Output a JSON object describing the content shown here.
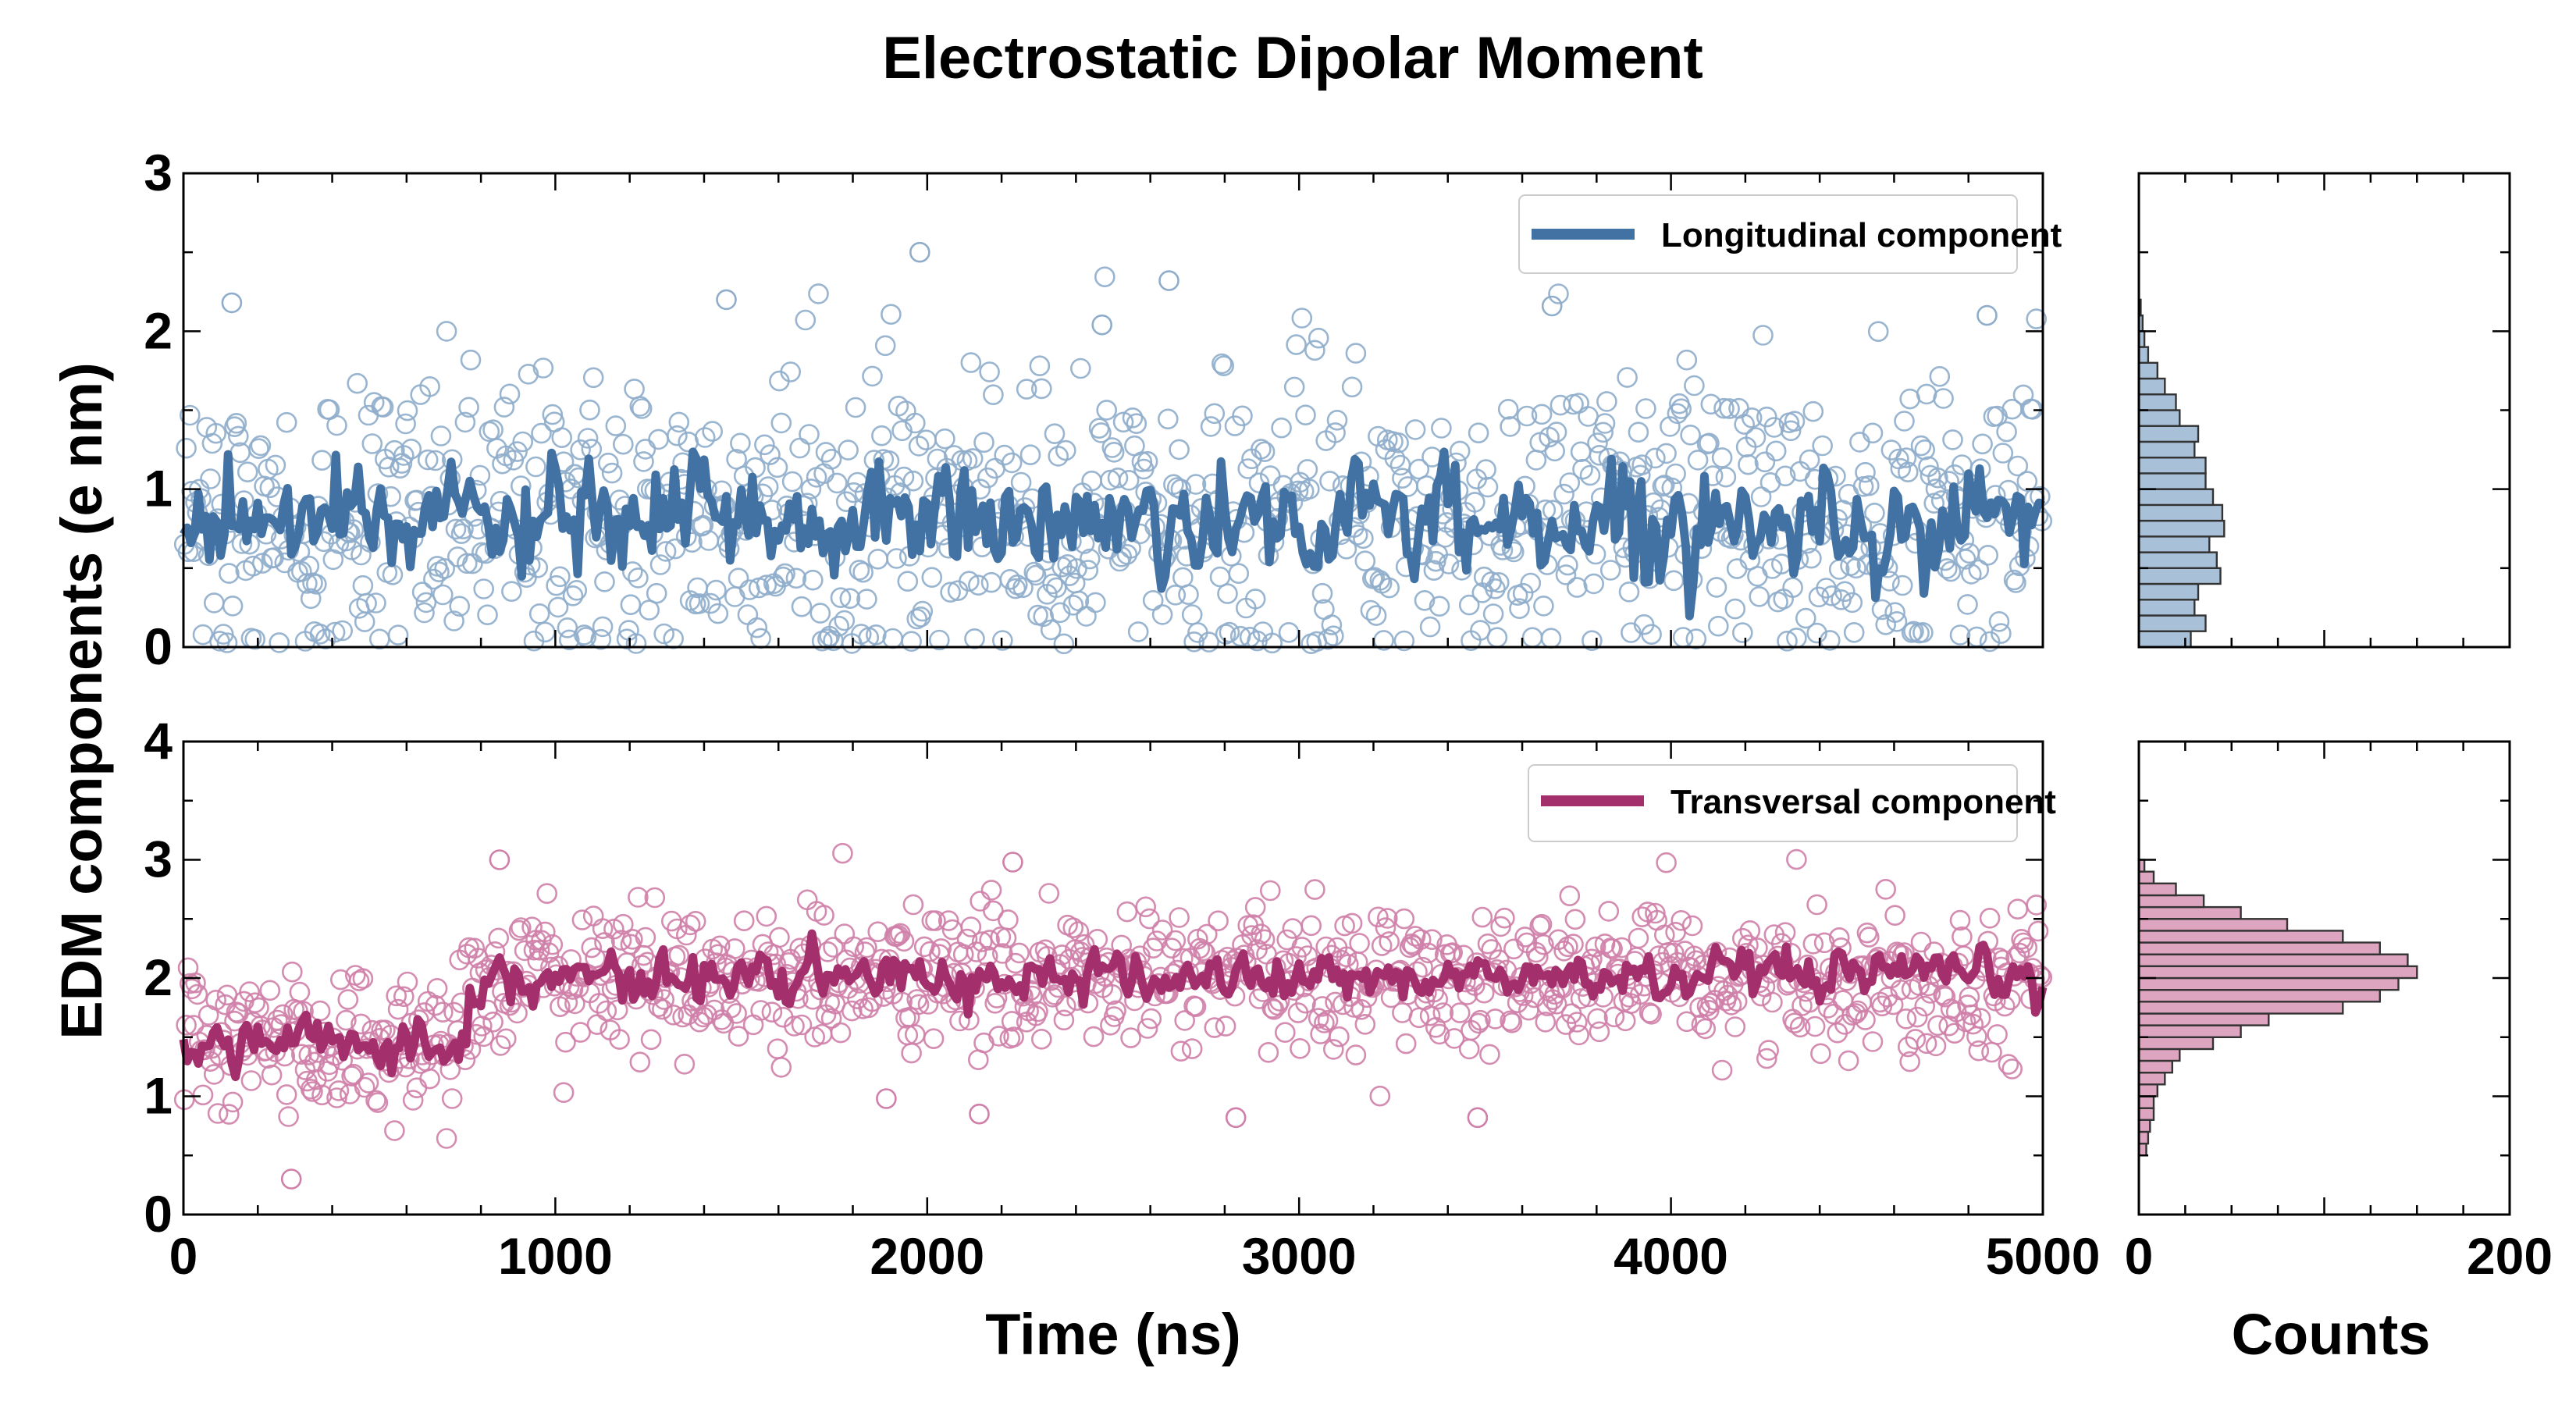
{
  "chart_data": {
    "type": "scatter",
    "title": "Electrostatic Dipolar Moment",
    "ylabel": "EDM components (e nm)",
    "xlabel": "Time (ns)",
    "hist_xlabel": "Counts",
    "x_range": [
      0,
      5000
    ],
    "x_ticks": [
      0,
      1000,
      2000,
      3000,
      4000,
      5000
    ],
    "hist_x_range": [
      0,
      200
    ],
    "hist_x_ticks": [
      0,
      200
    ],
    "panels": [
      {
        "name": "longitudinal",
        "legend": "Longitudinal component",
        "color": "#4272a3",
        "point_color": "#8fadcb",
        "hist_fill": "#a9c0d9",
        "ylim": [
          0,
          3
        ],
        "y_ticks": [
          0,
          1,
          2,
          3
        ],
        "scatter_mean": 0.8,
        "scatter_sd": 0.48,
        "line_mean": 0.8,
        "line_sd": 0.17,
        "outliers": [
          [
            1980,
            2.5
          ],
          [
            2650,
            2.32
          ],
          [
            130,
            2.18
          ],
          [
            1460,
            2.2
          ],
          [
            3680,
            2.16
          ],
          [
            4850,
            2.1
          ],
          [
            2470,
            2.04
          ]
        ],
        "hist_bins": [
          {
            "y": 0.05,
            "count": 28
          },
          {
            "y": 0.15,
            "count": 36
          },
          {
            "y": 0.25,
            "count": 30
          },
          {
            "y": 0.35,
            "count": 32
          },
          {
            "y": 0.45,
            "count": 44
          },
          {
            "y": 0.55,
            "count": 42
          },
          {
            "y": 0.65,
            "count": 38
          },
          {
            "y": 0.75,
            "count": 46
          },
          {
            "y": 0.85,
            "count": 45
          },
          {
            "y": 0.95,
            "count": 40
          },
          {
            "y": 1.05,
            "count": 36
          },
          {
            "y": 1.15,
            "count": 36
          },
          {
            "y": 1.25,
            "count": 30
          },
          {
            "y": 1.35,
            "count": 32
          },
          {
            "y": 1.45,
            "count": 22
          },
          {
            "y": 1.55,
            "count": 20
          },
          {
            "y": 1.65,
            "count": 14
          },
          {
            "y": 1.75,
            "count": 10
          },
          {
            "y": 1.85,
            "count": 5
          },
          {
            "y": 1.95,
            "count": 3
          },
          {
            "y": 2.05,
            "count": 2
          },
          {
            "y": 2.15,
            "count": 1
          }
        ]
      },
      {
        "name": "transversal",
        "legend": "Transversal component",
        "color": "#a3306c",
        "point_color": "#cf7fa8",
        "hist_fill": "#dea5c0",
        "ylim": [
          0,
          4
        ],
        "y_ticks": [
          0,
          1,
          2,
          3,
          4
        ],
        "segments": [
          {
            "x_start": 0,
            "x_end": 760,
            "mean": 1.45,
            "scatter_sd": 0.33,
            "line_sd": 0.1
          },
          {
            "x_start": 760,
            "x_end": 5000,
            "mean": 2.0,
            "scatter_sd": 0.3,
            "line_sd": 0.1
          }
        ],
        "outliers": [
          [
            850,
            3.0
          ],
          [
            290,
            0.3
          ],
          [
            2230,
            2.98
          ],
          [
            1890,
            0.98
          ],
          [
            2830,
            0.82
          ],
          [
            3480,
            0.82
          ],
          [
            2140,
            0.85
          ]
        ],
        "hist_bins": [
          {
            "y": 0.55,
            "count": 4
          },
          {
            "y": 0.65,
            "count": 5
          },
          {
            "y": 0.75,
            "count": 6
          },
          {
            "y": 0.85,
            "count": 8
          },
          {
            "y": 0.95,
            "count": 8
          },
          {
            "y": 1.05,
            "count": 10
          },
          {
            "y": 1.15,
            "count": 14
          },
          {
            "y": 1.25,
            "count": 18
          },
          {
            "y": 1.35,
            "count": 22
          },
          {
            "y": 1.45,
            "count": 40
          },
          {
            "y": 1.55,
            "count": 55
          },
          {
            "y": 1.65,
            "count": 70
          },
          {
            "y": 1.75,
            "count": 110
          },
          {
            "y": 1.85,
            "count": 130
          },
          {
            "y": 1.95,
            "count": 140
          },
          {
            "y": 2.05,
            "count": 150
          },
          {
            "y": 2.15,
            "count": 145
          },
          {
            "y": 2.25,
            "count": 130
          },
          {
            "y": 2.35,
            "count": 110
          },
          {
            "y": 2.45,
            "count": 80
          },
          {
            "y": 2.55,
            "count": 55
          },
          {
            "y": 2.65,
            "count": 35
          },
          {
            "y": 2.75,
            "count": 20
          },
          {
            "y": 2.85,
            "count": 8
          },
          {
            "y": 2.95,
            "count": 3
          }
        ]
      }
    ]
  }
}
